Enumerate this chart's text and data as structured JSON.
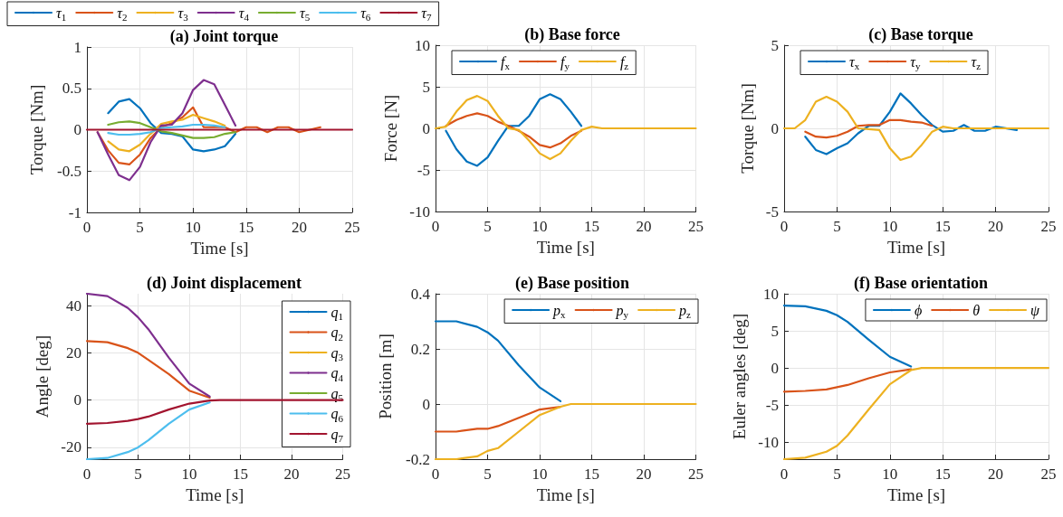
{
  "chart_data": [
    {
      "type": "line",
      "title": "(a) Joint torque",
      "xlabel": "Time [s]",
      "ylabel": "Torque [Nm]",
      "legend": "top left",
      "grid": true,
      "xlim": [
        0,
        25
      ],
      "xticks": [
        0,
        5,
        10,
        15,
        20,
        25
      ],
      "ylim": [
        -1,
        1
      ],
      "yticks": [
        -1,
        -0.5,
        0,
        0.5,
        1
      ],
      "x": [
        0,
        1,
        2,
        3,
        4,
        5,
        6,
        7,
        8,
        9,
        10,
        11,
        12,
        13,
        14,
        15,
        16,
        17,
        18,
        19,
        20,
        22,
        25
      ],
      "series": [
        {
          "name": "τ$_{1}$",
          "color": "#0072bd",
          "values": [
            null,
            null,
            0.2,
            0.34,
            0.37,
            0.26,
            0.08,
            -0.04,
            -0.05,
            -0.08,
            -0.24,
            -0.26,
            -0.24,
            -0.2,
            -0.05,
            null,
            null,
            null,
            null,
            null,
            null,
            null,
            null
          ]
        },
        {
          "name": "τ$_{2}$",
          "color": "#d95319",
          "values": [
            null,
            -0.03,
            -0.25,
            -0.4,
            -0.42,
            -0.3,
            -0.1,
            0.03,
            0.08,
            0.15,
            0.27,
            0.03,
            0.03,
            0.03,
            -0.03,
            0.03,
            0.03,
            -0.03,
            0.03,
            0.03,
            -0.03,
            0.03,
            null
          ]
        },
        {
          "name": "τ$_{3}$",
          "color": "#edb120",
          "values": [
            null,
            null,
            -0.14,
            -0.24,
            -0.26,
            -0.18,
            -0.05,
            0.07,
            0.1,
            0.12,
            0.18,
            0.14,
            0.1,
            0.05,
            null,
            null,
            null,
            null,
            null,
            null,
            null,
            null,
            null
          ]
        },
        {
          "name": "τ$_{4}$",
          "color": "#7e2f8e",
          "values": [
            null,
            -0.03,
            -0.3,
            -0.55,
            -0.61,
            -0.45,
            -0.15,
            0.05,
            0.06,
            0.2,
            0.48,
            0.6,
            0.55,
            0.3,
            0.05,
            null,
            null,
            null,
            null,
            null,
            null,
            null,
            null
          ]
        },
        {
          "name": "τ$_{5}$",
          "color": "#77ac30",
          "values": [
            null,
            null,
            0.06,
            0.09,
            0.1,
            0.08,
            0.03,
            -0.02,
            -0.04,
            -0.07,
            -0.1,
            -0.1,
            -0.09,
            -0.05,
            -0.03,
            null,
            null,
            null,
            null,
            null,
            null,
            null,
            null
          ]
        },
        {
          "name": "τ$_{6}$",
          "color": "#4dbeee",
          "values": [
            null,
            null,
            -0.04,
            -0.06,
            -0.06,
            -0.05,
            -0.03,
            0.02,
            0.03,
            0.04,
            0.06,
            0.06,
            0.05,
            0.03,
            null,
            null,
            null,
            null,
            null,
            null,
            null,
            null,
            null
          ]
        },
        {
          "name": "τ$_{7}$",
          "color": "#a2142f",
          "values": [
            0,
            0,
            0,
            0,
            0,
            0,
            0,
            0,
            0,
            0,
            0,
            0,
            0,
            0,
            0,
            0,
            0,
            0,
            0,
            0,
            0,
            0,
            0
          ]
        }
      ]
    },
    {
      "type": "line",
      "title": "(b) Base force",
      "xlabel": "Time [s]",
      "ylabel": "Force [N]",
      "legend": "top",
      "grid": true,
      "xlim": [
        0,
        25
      ],
      "xticks": [
        0,
        5,
        10,
        15,
        20,
        25
      ],
      "ylim": [
        -10,
        10
      ],
      "yticks": [
        -10,
        -5,
        0,
        5,
        10
      ],
      "x": [
        0,
        1,
        2,
        3,
        4,
        5,
        6,
        7,
        8,
        9,
        10,
        11,
        12,
        13,
        14,
        15,
        16,
        17,
        18,
        19,
        20,
        22,
        25
      ],
      "series": [
        {
          "name": "f$_{x}$",
          "color": "#0072bd",
          "values": [
            null,
            -0.3,
            -2.5,
            -4,
            -4.5,
            -3.5,
            -1.5,
            0.3,
            0.3,
            1.5,
            3.5,
            4.1,
            3.5,
            2,
            0.3,
            null,
            null,
            null,
            null,
            null,
            null,
            null,
            null
          ]
        },
        {
          "name": "f$_{y}$",
          "color": "#d95319",
          "values": [
            null,
            0.3,
            1,
            1.5,
            1.8,
            1.5,
            0.8,
            0.3,
            -0.3,
            -1,
            -2,
            -2.3,
            -1.8,
            -0.9,
            -0.3,
            null,
            null,
            null,
            null,
            null,
            null,
            null,
            null
          ]
        },
        {
          "name": "f$_{z}$",
          "color": "#edb120",
          "values": [
            0,
            0.2,
            2,
            3.4,
            3.9,
            3.3,
            1.5,
            0,
            -0.2,
            -1.5,
            -3,
            -3.7,
            -3,
            -1.5,
            -0.2,
            0.2,
            0,
            0,
            0,
            0,
            0,
            0,
            0
          ]
        }
      ]
    },
    {
      "type": "line",
      "title": "(c) Base torque",
      "xlabel": "Time [s]",
      "ylabel": "Torque [Nm]",
      "legend": "top",
      "grid": true,
      "xlim": [
        0,
        25
      ],
      "xticks": [
        0,
        5,
        10,
        15,
        20,
        25
      ],
      "ylim": [
        -5,
        5
      ],
      "yticks": [
        -5,
        0,
        5
      ],
      "x": [
        0,
        1,
        2,
        3,
        4,
        5,
        6,
        7,
        8,
        9,
        10,
        11,
        12,
        13,
        14,
        15,
        16,
        17,
        18,
        19,
        20,
        22,
        25
      ],
      "series": [
        {
          "name": "τ$_{x}$",
          "color": "#0072bd",
          "values": [
            null,
            null,
            -0.5,
            -1.3,
            -1.55,
            -1.2,
            -0.9,
            -0.3,
            0.15,
            0.15,
            1,
            2.1,
            1.5,
            0.8,
            0.2,
            -0.2,
            -0.15,
            0.2,
            -0.15,
            -0.15,
            0.1,
            -0.1,
            null
          ]
        },
        {
          "name": "τ$_{y}$",
          "color": "#d95319",
          "values": [
            null,
            null,
            -0.2,
            -0.5,
            -0.55,
            -0.45,
            -0.2,
            0.15,
            0.2,
            0.2,
            0.5,
            0.5,
            0.4,
            0.35,
            0.15,
            null,
            null,
            null,
            null,
            null,
            null,
            null,
            null
          ]
        },
        {
          "name": "τ$_{z}$",
          "color": "#edb120",
          "values": [
            0,
            0,
            0.5,
            1.6,
            1.9,
            1.6,
            1,
            0,
            -0.05,
            -0.1,
            -1.2,
            -1.9,
            -1.7,
            -1,
            -0.2,
            0.1,
            0,
            0,
            0,
            0,
            0,
            0,
            0
          ]
        }
      ]
    },
    {
      "type": "line",
      "title": "(d) Joint displacement",
      "xlabel": "Time [s]",
      "ylabel": "Angle [deg]",
      "legend": "right",
      "grid": true,
      "xlim": [
        0,
        25
      ],
      "xticks": [
        0,
        5,
        10,
        15,
        20,
        25
      ],
      "ylim": [
        -25,
        45
      ],
      "yticks": [
        -20,
        0,
        20,
        40
      ],
      "x": [
        0,
        2,
        4,
        5,
        6,
        8,
        10,
        12,
        13,
        14,
        25
      ],
      "series": [
        {
          "name": "q$_{1}$",
          "color": "#0072bd",
          "values": [
            null,
            null,
            null,
            null,
            null,
            null,
            null,
            null,
            null,
            null,
            null
          ]
        },
        {
          "name": "q$_{2}$",
          "color": "#d95319",
          "values": [
            25,
            24.5,
            22,
            20,
            17,
            11,
            4,
            1,
            null,
            null,
            null
          ]
        },
        {
          "name": "q$_{3}$",
          "color": "#edb120",
          "values": [
            null,
            null,
            null,
            null,
            null,
            null,
            null,
            null,
            null,
            null,
            null
          ]
        },
        {
          "name": "q$_{4}$",
          "color": "#7e2f8e",
          "values": [
            45,
            44,
            39,
            35,
            30,
            18,
            7,
            1.5,
            null,
            null,
            null
          ]
        },
        {
          "name": "q$_{5}$",
          "color": "#77ac30",
          "values": [
            null,
            null,
            null,
            null,
            null,
            null,
            null,
            null,
            null,
            null,
            null
          ]
        },
        {
          "name": "q$_{6}$",
          "color": "#4dbeee",
          "values": [
            -25,
            -24.5,
            -22,
            -20,
            -17,
            -10,
            -4,
            -1,
            null,
            null,
            null
          ]
        },
        {
          "name": "q$_{7}$",
          "color": "#a2142f",
          "values": [
            -10,
            -9.7,
            -8.8,
            -8,
            -7,
            -4,
            -1.5,
            -0.2,
            0,
            0,
            0
          ]
        }
      ]
    },
    {
      "type": "line",
      "title": "(e) Base position",
      "xlabel": "Time [s]",
      "ylabel": "Position [m]",
      "legend": "top right",
      "grid": true,
      "xlim": [
        0,
        25
      ],
      "xticks": [
        0,
        5,
        10,
        15,
        20,
        25
      ],
      "ylim": [
        -0.2,
        0.4
      ],
      "yticks": [
        -0.2,
        0,
        0.2,
        0.4
      ],
      "x": [
        0,
        2,
        4,
        5,
        6,
        8,
        10,
        12,
        13,
        14,
        25
      ],
      "series": [
        {
          "name": "p$_{x}$",
          "color": "#0072bd",
          "values": [
            0.3,
            0.3,
            0.28,
            0.26,
            0.23,
            0.14,
            0.06,
            0.01,
            null,
            null,
            null
          ]
        },
        {
          "name": "p$_{y}$",
          "color": "#d95319",
          "values": [
            -0.1,
            -0.1,
            -0.09,
            -0.09,
            -0.08,
            -0.05,
            -0.02,
            -0.01,
            null,
            null,
            null
          ]
        },
        {
          "name": "p$_{z}$",
          "color": "#edb120",
          "values": [
            -0.2,
            -0.2,
            -0.19,
            -0.17,
            -0.16,
            -0.1,
            -0.04,
            -0.01,
            0,
            0,
            0
          ]
        }
      ]
    },
    {
      "type": "line",
      "title": "(f) Base orientation",
      "xlabel": "Time [s]",
      "ylabel": "Euler angles [deg]",
      "legend": "top right",
      "grid": true,
      "xlim": [
        0,
        25
      ],
      "xticks": [
        0,
        5,
        10,
        15,
        20,
        25
      ],
      "ylim": [
        -12.3,
        10
      ],
      "yticks": [
        -10,
        -5,
        0,
        5,
        10
      ],
      "x": [
        0,
        2,
        4,
        5,
        6,
        8,
        10,
        12,
        13,
        14,
        25
      ],
      "series": [
        {
          "name": "ϕ",
          "color": "#0072bd",
          "values": [
            8.4,
            8.3,
            7.7,
            7.1,
            6.2,
            3.8,
            1.5,
            0.2,
            null,
            null,
            null
          ]
        },
        {
          "name": "θ",
          "color": "#d95319",
          "values": [
            -3.2,
            -3.1,
            -2.9,
            -2.6,
            -2.3,
            -1.4,
            -0.6,
            -0.2,
            null,
            null,
            null
          ]
        },
        {
          "name": "ψ",
          "color": "#edb120",
          "values": [
            -12.3,
            -12.1,
            -11.3,
            -10.5,
            -9.1,
            -5.6,
            -2.2,
            -0.3,
            0,
            0,
            0
          ]
        }
      ]
    }
  ]
}
